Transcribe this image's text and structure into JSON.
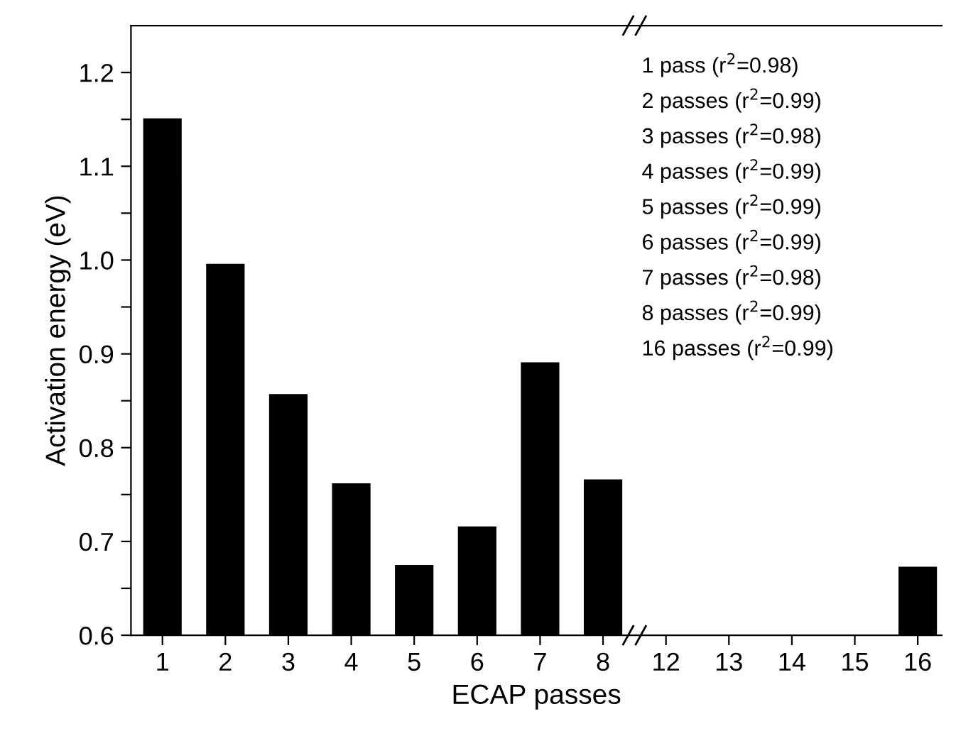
{
  "chart_data": {
    "type": "bar",
    "xlabel": "ECAP passes",
    "ylabel": "Activation energy (eV)",
    "categories": [
      "1",
      "2",
      "3",
      "4",
      "5",
      "6",
      "7",
      "8",
      "12",
      "13",
      "14",
      "15",
      "16"
    ],
    "values": [
      1.15,
      0.995,
      0.856,
      0.761,
      0.674,
      0.715,
      0.89,
      0.765,
      null,
      null,
      null,
      null,
      0.672
    ],
    "color": "#000000",
    "ylim": [
      0.6,
      1.25
    ],
    "yticks": [
      0.6,
      {
        "value": 0.65,
        "label": null
      },
      0.7,
      {
        "value": 0.75,
        "label": null
      },
      0.8,
      {
        "value": 0.85,
        "label": null
      },
      0.9,
      {
        "value": 0.95,
        "label": null
      },
      {
        "value": 1.0,
        "label": "1.0"
      },
      {
        "value": 1.05,
        "label": null
      },
      1.1,
      {
        "value": 1.15,
        "label": null
      },
      1.2
    ],
    "annotations": [
      "1 pass (r$^{2}$=0.98)",
      "2 passes (r$^{2}$=0.99)",
      "3 passes (r$^{2}$=0.98)",
      "4 passes (r$^{2}$=0.99)",
      "5 passes (r$^{2}$=0.99)",
      "6 passes (r$^{2}$=0.99)",
      "7 passes (r$^{2}$=0.98)",
      "8 passes (r$^{2}$=0.99)",
      "16 passes (r$^{2}$=0.99)"
    ],
    "grid": false,
    "legend": false
  }
}
